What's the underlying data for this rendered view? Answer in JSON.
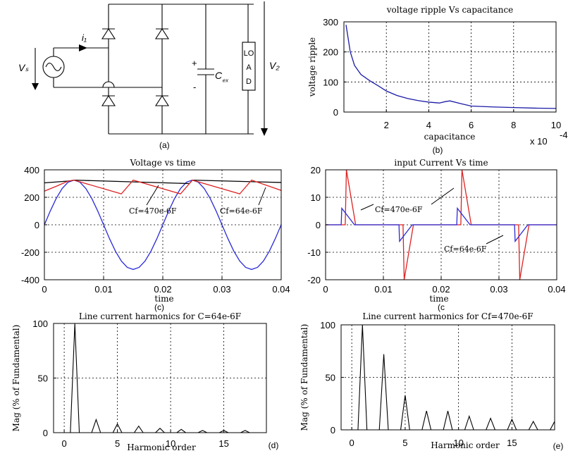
{
  "circuit": {
    "caption": "(a)",
    "source_label": "Vₛ",
    "current_label": "i₁",
    "cap_plus": "+",
    "cap_minus": "-",
    "cap_label": "C",
    "cap_sub": "ₑₓ",
    "load_letters": [
      "LO",
      "A",
      "D"
    ],
    "output_label": "V₂"
  },
  "chart_data": [
    {
      "id": "b",
      "type": "line",
      "title": "voltage ripple Vs capacitance",
      "xlabel": "capacitance",
      "ylabel": "voltage ripple",
      "caption": "(b)",
      "exponent_label": "x 10",
      "exponent_power": "-4",
      "xlim": [
        0,
        10
      ],
      "ylim": [
        0,
        300
      ],
      "xticks": [
        2,
        4,
        6,
        8,
        10
      ],
      "yticks": [
        0,
        100,
        200,
        300
      ],
      "grid": true,
      "series": [
        {
          "color": "#1a1aa6",
          "x": [
            0.1,
            0.3,
            0.5,
            0.8,
            1.2,
            1.6,
            2,
            2.5,
            3,
            3.5,
            4,
            4.5,
            4.8,
            5,
            5.5,
            6,
            7,
            8,
            9,
            10
          ],
          "y": [
            290,
            200,
            155,
            125,
            105,
            88,
            70,
            55,
            45,
            38,
            33,
            30,
            35,
            37,
            28,
            20,
            17,
            15,
            13,
            12
          ]
        }
      ]
    },
    {
      "id": "c1",
      "type": "line",
      "title": "Voltage vs time",
      "xlabel": "time",
      "caption": "(c)",
      "xlim": [
        0,
        0.04
      ],
      "ylim": [
        -400,
        400
      ],
      "xticks": [
        0,
        0.01,
        0.02,
        0.03,
        0.04
      ],
      "yticks": [
        -400,
        -200,
        0,
        200,
        400
      ],
      "grid": true,
      "annotations": [
        "Cf=470e-6F",
        "Cf=64e-6F"
      ],
      "series": [
        {
          "color": "#2b2bd8",
          "x": [
            0,
            0.001,
            0.002,
            0.003,
            0.004,
            0.005,
            0.006,
            0.007,
            0.008,
            0.009,
            0.01,
            0.011,
            0.012,
            0.013,
            0.014,
            0.015,
            0.016,
            0.017,
            0.018,
            0.019,
            0.02,
            0.021,
            0.022,
            0.023,
            0.024,
            0.025,
            0.026,
            0.027,
            0.028,
            0.029,
            0.03,
            0.031,
            0.032,
            0.033,
            0.034,
            0.035,
            0.036,
            0.037,
            0.038,
            0.039,
            0.04
          ],
          "y": [
            0,
            101,
            192,
            264,
            310,
            325,
            310,
            264,
            192,
            101,
            0,
            -101,
            -192,
            -264,
            -310,
            -325,
            -310,
            -264,
            -192,
            -101,
            0,
            101,
            192,
            264,
            310,
            325,
            310,
            264,
            192,
            101,
            0,
            -101,
            -192,
            -264,
            -310,
            -325,
            -310,
            -264,
            -192,
            -101,
            0
          ]
        },
        {
          "color": "#000000",
          "x": [
            0,
            0.0045,
            0.005,
            0.0245,
            0.025,
            0.04
          ],
          "y": [
            305,
            320,
            325,
            300,
            325,
            308
          ]
        },
        {
          "color": "#dd2222",
          "x": [
            0,
            0.002,
            0.004,
            0.005,
            0.013,
            0.015,
            0.023,
            0.025,
            0.033,
            0.035,
            0.04
          ],
          "y": [
            245,
            280,
            318,
            325,
            225,
            325,
            225,
            325,
            225,
            325,
            250
          ]
        }
      ]
    },
    {
      "id": "c2",
      "type": "line",
      "title": "input Current Vs time",
      "xlabel": "time",
      "caption": "(c",
      "xlim": [
        0,
        0.04
      ],
      "ylim": [
        -20,
        20
      ],
      "xticks": [
        0,
        0.01,
        0.02,
        0.03,
        0.04
      ],
      "yticks": [
        -20,
        -10,
        0,
        10,
        20
      ],
      "grid": true,
      "annotations": [
        "Cf=470e-6F",
        "Cf=64e-6F"
      ],
      "series": [
        {
          "color": "#dd2222",
          "x": [
            0,
            0.0034,
            0.0036,
            0.0052,
            0.0134,
            0.0136,
            0.0152,
            0.0234,
            0.0236,
            0.0252,
            0.0334,
            0.0336,
            0.0352,
            0.04
          ],
          "y": [
            0,
            0,
            20,
            0,
            0,
            -20,
            0,
            0,
            20,
            0,
            0,
            -20,
            0,
            0
          ]
        },
        {
          "color": "#2b2bd8",
          "x": [
            0,
            0.0027,
            0.0028,
            0.005,
            0.0127,
            0.0128,
            0.015,
            0.0227,
            0.0228,
            0.025,
            0.0327,
            0.0328,
            0.035,
            0.04
          ],
          "y": [
            0,
            0,
            6,
            0,
            0,
            -6,
            0,
            0,
            6,
            0,
            0,
            -6,
            0,
            0
          ]
        }
      ]
    },
    {
      "id": "d",
      "type": "line",
      "title": "Line current harmonics for C=64e-6F",
      "xlabel": "Harmonic order",
      "ylabel": "Mag (% of Fundamental)",
      "caption": "(d)",
      "xlim": [
        -1,
        19
      ],
      "ylim": [
        0,
        100
      ],
      "xticks": [
        0,
        5,
        10,
        15
      ],
      "yticks": [
        0,
        50,
        100
      ],
      "grid": true,
      "harmonics": [
        [
          1,
          100
        ],
        [
          3,
          12
        ],
        [
          5,
          8
        ],
        [
          7,
          6
        ],
        [
          9,
          4
        ],
        [
          11,
          3
        ],
        [
          13,
          2
        ],
        [
          15,
          2
        ],
        [
          17,
          2
        ]
      ]
    },
    {
      "id": "e",
      "type": "line",
      "title": "Line current harmonics for Cf=470e-6F",
      "xlabel": "Harmonic order",
      "ylabel": "Mag (% of Fundamental)",
      "caption": "(e)",
      "xlim": [
        -1,
        19
      ],
      "ylim": [
        0,
        100
      ],
      "xticks": [
        0,
        5,
        10,
        15
      ],
      "yticks": [
        0,
        50,
        100
      ],
      "grid": true,
      "harmonics": [
        [
          1,
          100
        ],
        [
          3,
          72
        ],
        [
          5,
          33
        ],
        [
          7,
          18
        ],
        [
          9,
          18
        ],
        [
          11,
          13
        ],
        [
          13,
          11
        ],
        [
          15,
          10
        ],
        [
          17,
          8
        ],
        [
          19,
          8
        ]
      ]
    }
  ]
}
